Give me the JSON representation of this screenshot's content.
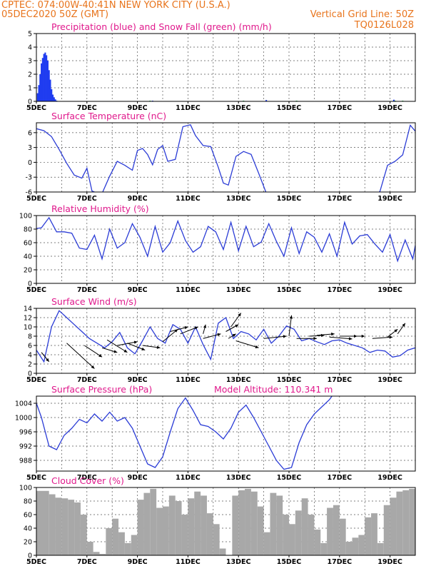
{
  "header": {
    "line1": "CPTEC:   074:00W-40:41N   NEW YORK CITY (U.S.A.)",
    "date": "05DEC2020 50Z (GMT)",
    "grid_label": "Vertical Grid Line: 50Z",
    "code": "TQ0126L028"
  },
  "x_ticks": [
    "5DEC",
    "7DEC",
    "9DEC",
    "11DEC",
    "13DEC",
    "15DEC",
    "17DEC",
    "19DEC"
  ],
  "colors": {
    "line": "#2b3cd6",
    "precip": "#1f3cf0",
    "snow": "#27b84a",
    "cloud": "#a8a8a8",
    "title": "#e0198c",
    "header": "#e8741c"
  },
  "chart_data": [
    {
      "type": "bar",
      "title": "Precipitation (blue) and Snow Fall (green) (mm/h)",
      "ylim": [
        0,
        5
      ],
      "yticks": [
        "0",
        "1",
        "2",
        "3",
        "4",
        "5"
      ],
      "x_range_days": [
        0,
        15
      ],
      "series": [
        {
          "name": "Precipitation",
          "x": [
            0.05,
            0.1,
            0.15,
            0.2,
            0.25,
            0.3,
            0.35,
            0.4,
            0.45,
            0.5,
            0.55,
            0.6,
            0.65,
            0.7,
            0.75,
            0.8,
            4.6,
            9.1,
            14.15
          ],
          "values": [
            0.6,
            1.2,
            2.0,
            2.8,
            3.2,
            3.5,
            3.6,
            3.4,
            3.0,
            2.3,
            1.6,
            0.9,
            0.5,
            0.3,
            0.15,
            0.05,
            0.05,
            0.1,
            0.12
          ]
        },
        {
          "name": "Snow Fall",
          "x": [
            4.5,
            8.2,
            10.3,
            14.2,
            14.5
          ],
          "values": [
            0.05,
            0.05,
            0.05,
            0.05,
            0.05
          ]
        }
      ]
    },
    {
      "type": "line",
      "title": "Surface Temperature (nC)",
      "ylim": [
        -6,
        8
      ],
      "yticks": [
        "-6",
        "-3",
        "0",
        "3",
        "6"
      ],
      "x": [
        0,
        0.3,
        0.6,
        0.9,
        1.2,
        1.5,
        1.8,
        2.0,
        2.2,
        2.4,
        2.6,
        2.9,
        3.2,
        3.5,
        3.8,
        4.0,
        4.2,
        4.4,
        4.6,
        4.8,
        5.0,
        5.2,
        5.5,
        5.8,
        6.1,
        6.3,
        6.6,
        6.9,
        7.2,
        7.4,
        7.6,
        7.9,
        8.2,
        8.5,
        8.8,
        9.1,
        9.4,
        9.7,
        10.0,
        10.3,
        10.6,
        10.9,
        11.2,
        11.5,
        11.8,
        12.1,
        12.4,
        12.7,
        13.0,
        13.3,
        13.6,
        13.9,
        14.2,
        14.5,
        14.8,
        15.0
      ],
      "values": [
        6.8,
        6.4,
        5.2,
        2.6,
        -0.2,
        -2.6,
        -3.2,
        -1.2,
        -5.8,
        -6.2,
        -6.3,
        -2.8,
        0.2,
        -0.6,
        -1.6,
        2.4,
        2.8,
        1.6,
        -0.5,
        2.6,
        3.4,
        0.2,
        0.6,
        7.2,
        7.6,
        5.4,
        3.4,
        3.2,
        -1.0,
        -4.2,
        -4.6,
        1.2,
        2.2,
        1.6,
        -2.2,
        -6.2,
        -6.8,
        -7.2,
        -6.8,
        -6.8,
        -6.9,
        -6.9,
        -6.9,
        -6.9,
        -6.9,
        -6.9,
        -6.9,
        -6.9,
        -6.9,
        -6.9,
        -5.9,
        -0.6,
        0.2,
        1.5,
        7.5,
        6.3
      ]
    },
    {
      "type": "line",
      "title": "Relative Humidity (%)",
      "ylim": [
        0,
        100
      ],
      "yticks": [
        "0",
        "20",
        "40",
        "60",
        "80",
        "100"
      ],
      "x": [
        0,
        0.2,
        0.5,
        0.8,
        1.1,
        1.4,
        1.7,
        2.0,
        2.3,
        2.6,
        2.9,
        3.2,
        3.5,
        3.8,
        4.1,
        4.4,
        4.7,
        5.0,
        5.3,
        5.6,
        5.9,
        6.2,
        6.5,
        6.8,
        7.1,
        7.4,
        7.7,
        8.0,
        8.3,
        8.6,
        8.9,
        9.2,
        9.5,
        9.8,
        10.1,
        10.4,
        10.7,
        11.0,
        11.3,
        11.6,
        11.9,
        12.2,
        12.5,
        12.8,
        13.1,
        13.4,
        13.7,
        14.0,
        14.3,
        14.6,
        14.9,
        15.0
      ],
      "values": [
        81,
        82,
        97,
        76,
        76,
        74,
        52,
        50,
        71,
        36,
        80,
        52,
        60,
        88,
        68,
        40,
        84,
        46,
        60,
        92,
        63,
        46,
        54,
        84,
        76,
        50,
        90,
        48,
        84,
        54,
        61,
        88,
        62,
        40,
        82,
        44,
        76,
        68,
        46,
        73,
        40,
        90,
        58,
        70,
        72,
        58,
        46,
        72,
        33,
        64,
        36,
        56
      ]
    },
    {
      "type": "line",
      "title": "Surface Wind (m/s)",
      "ylim": [
        0,
        14
      ],
      "yticks": [
        "0",
        "2",
        "4",
        "6",
        "8",
        "10",
        "12",
        "14"
      ],
      "x": [
        0,
        0.3,
        0.6,
        0.9,
        1.2,
        1.5,
        1.8,
        2.1,
        2.4,
        2.7,
        3.0,
        3.3,
        3.6,
        3.9,
        4.2,
        4.5,
        4.8,
        5.1,
        5.4,
        5.7,
        6.0,
        6.3,
        6.6,
        6.9,
        7.2,
        7.5,
        7.8,
        8.1,
        8.4,
        8.7,
        9.0,
        9.3,
        9.6,
        9.9,
        10.2,
        10.5,
        10.8,
        11.1,
        11.4,
        11.7,
        12.0,
        12.3,
        12.6,
        12.9,
        13.2,
        13.5,
        13.8,
        14.1,
        14.4,
        14.7,
        15.0
      ],
      "values": [
        5,
        2.5,
        10,
        13.5,
        12,
        10.5,
        9,
        7.5,
        6.5,
        5.5,
        6.8,
        8.8,
        5.5,
        4.2,
        7,
        10,
        7.5,
        6.5,
        10.5,
        9.5,
        6.5,
        10,
        6.2,
        3,
        10.8,
        12,
        7.5,
        9,
        8.5,
        7.2,
        9.5,
        6.5,
        8,
        10.2,
        9.5,
        7,
        7.5,
        6.8,
        6.2,
        7,
        7.2,
        6.5,
        6,
        5.5,
        4.5,
        5,
        4.8,
        3.5,
        3.8,
        5,
        5.5
      ]
    },
    {
      "type": "line",
      "title": "Surface Pressure (hPa)",
      "annotation": "Model Altitude: 110.341 m",
      "ylim": [
        985,
        1006
      ],
      "yticks": [
        "988",
        "992",
        "996",
        "1000",
        "1004"
      ],
      "x": [
        0,
        0.2,
        0.5,
        0.8,
        1.1,
        1.4,
        1.7,
        2.0,
        2.3,
        2.6,
        2.9,
        3.2,
        3.5,
        3.8,
        4.1,
        4.4,
        4.7,
        5.0,
        5.3,
        5.6,
        5.9,
        6.2,
        6.5,
        6.8,
        7.1,
        7.4,
        7.7,
        8.0,
        8.3,
        8.6,
        8.9,
        9.2,
        9.5,
        9.8,
        10.1,
        10.4,
        10.7,
        11.0,
        11.3,
        11.6,
        11.9,
        12.2,
        12.5,
        12.8,
        13.1,
        13.4,
        13.7,
        14.0,
        14.3,
        14.6,
        14.9,
        15.0
      ],
      "values": [
        1004,
        1000,
        992,
        991,
        995,
        997,
        999.5,
        998.5,
        1001,
        999,
        1001.5,
        999,
        1000,
        997,
        992,
        987,
        986,
        989,
        996,
        1002.5,
        1005.5,
        1002,
        998,
        997.5,
        996,
        994,
        997,
        1001.5,
        1003.5,
        1000,
        996,
        992,
        988,
        985.5,
        986,
        993,
        998,
        1001,
        1003,
        1005,
        1008,
        1008,
        1008,
        1008,
        1008,
        1008,
        1008,
        1008,
        1008,
        1008,
        1008,
        1008
      ]
    },
    {
      "type": "bar",
      "title": "Cloud Cover (%)",
      "ylim": [
        0,
        100
      ],
      "yticks": [
        "0",
        "20",
        "40",
        "60",
        "80",
        "100"
      ],
      "x": [
        0,
        0.5,
        0.75,
        1.0,
        1.25,
        1.5,
        1.75,
        2.0,
        2.25,
        2.5,
        2.75,
        3.0,
        3.25,
        3.5,
        3.75,
        4.0,
        4.25,
        4.5,
        4.75,
        5.0,
        5.25,
        5.5,
        5.75,
        6.0,
        6.25,
        6.5,
        6.75,
        7.0,
        7.25,
        7.5,
        7.75,
        8.0,
        8.25,
        8.5,
        8.75,
        9.0,
        9.25,
        9.5,
        9.75,
        10.0,
        10.25,
        10.5,
        10.75,
        11.0,
        11.25,
        11.5,
        11.75,
        12.0,
        12.25,
        12.5,
        12.75,
        13.0,
        13.25,
        13.5,
        13.75,
        14.0,
        14.25,
        14.5,
        14.75
      ],
      "values": [
        95,
        90,
        85,
        84,
        82,
        78,
        60,
        20,
        5,
        2,
        40,
        54,
        34,
        18,
        30,
        82,
        92,
        98,
        70,
        72,
        88,
        80,
        60,
        84,
        94,
        88,
        62,
        46,
        10,
        0,
        88,
        96,
        98,
        94,
        72,
        34,
        92,
        88,
        60,
        46,
        66,
        84,
        60,
        38,
        18,
        70,
        74,
        54,
        20,
        26,
        30,
        56,
        62,
        18,
        74,
        85,
        94,
        96,
        98
      ]
    }
  ]
}
